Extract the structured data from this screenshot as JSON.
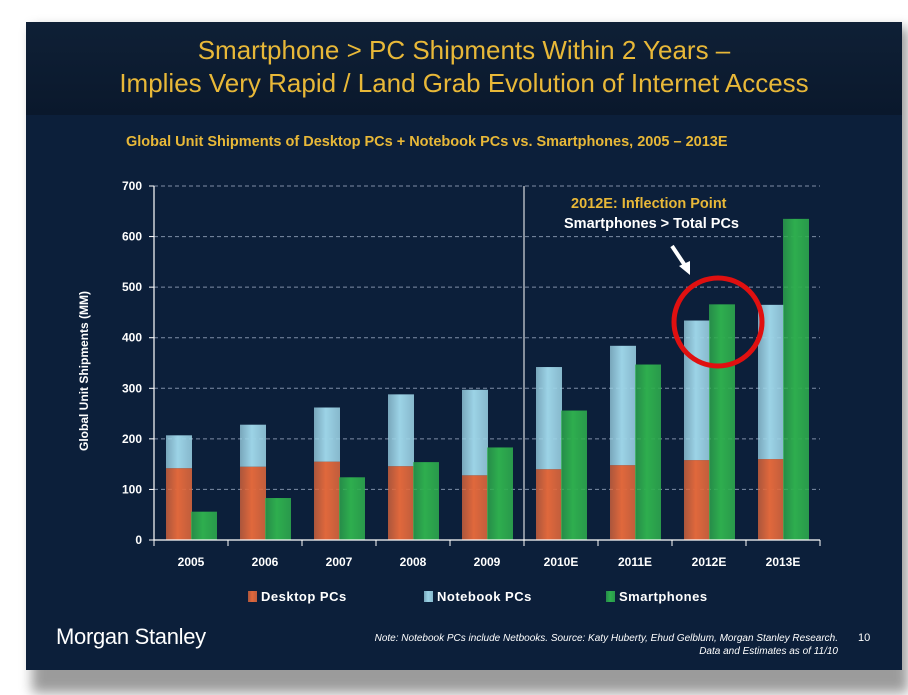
{
  "slide": {
    "title_line1": "Smartphone > PC Shipments Within 2 Years –",
    "title_line2": "Implies Very Rapid / Land Grab Evolution of Internet Access",
    "subtitle": "Global Unit Shipments of Desktop PCs + Notebook PCs vs. Smartphones, 2005 – 2013E",
    "logo_text": "Morgan Stanley",
    "note_line1": "Note: Notebook PCs include Netbooks. Source: Katy Huberty, Ehud Gelblum, Morgan Stanley Research.",
    "note_line2": "Data and Estimates as of 11/10",
    "page_number": "10",
    "callout_line1": "2012E: Inflection Point",
    "callout_line2": "Smartphones > Total PCs"
  },
  "colors": {
    "background": "#0c1f3a",
    "title": "#e8b838",
    "desktop": "#e0683c",
    "notebook": "#9cd3e6",
    "smartphone": "#2eae4e",
    "circle": "#e01010"
  },
  "chart_data": {
    "type": "bar",
    "stacked_group": [
      "Desktop PCs",
      "Notebook PCs"
    ],
    "categories": [
      "2005",
      "2006",
      "2007",
      "2008",
      "2009",
      "2010E",
      "2011E",
      "2012E",
      "2013E"
    ],
    "series": [
      {
        "name": "Desktop PCs",
        "values": [
          142,
          145,
          155,
          146,
          128,
          140,
          148,
          158,
          160
        ],
        "color": "#e0683c"
      },
      {
        "name": "Notebook PCs",
        "values": [
          65,
          83,
          107,
          142,
          169,
          202,
          236,
          276,
          305
        ],
        "color": "#9cd3e6"
      },
      {
        "name": "Smartphones",
        "values": [
          56,
          83,
          124,
          154,
          183,
          256,
          347,
          466,
          635
        ],
        "color": "#2eae4e"
      }
    ],
    "ylabel": "Global Unit Shipments (MM)",
    "xlabel": "",
    "ylim": [
      0,
      700
    ],
    "yticks": [
      0,
      100,
      200,
      300,
      400,
      500,
      600,
      700
    ],
    "grid": "horizontal dashed",
    "legend": "bottom",
    "annotation": "2012E: Inflection Point — Smartphones > Total PCs"
  }
}
